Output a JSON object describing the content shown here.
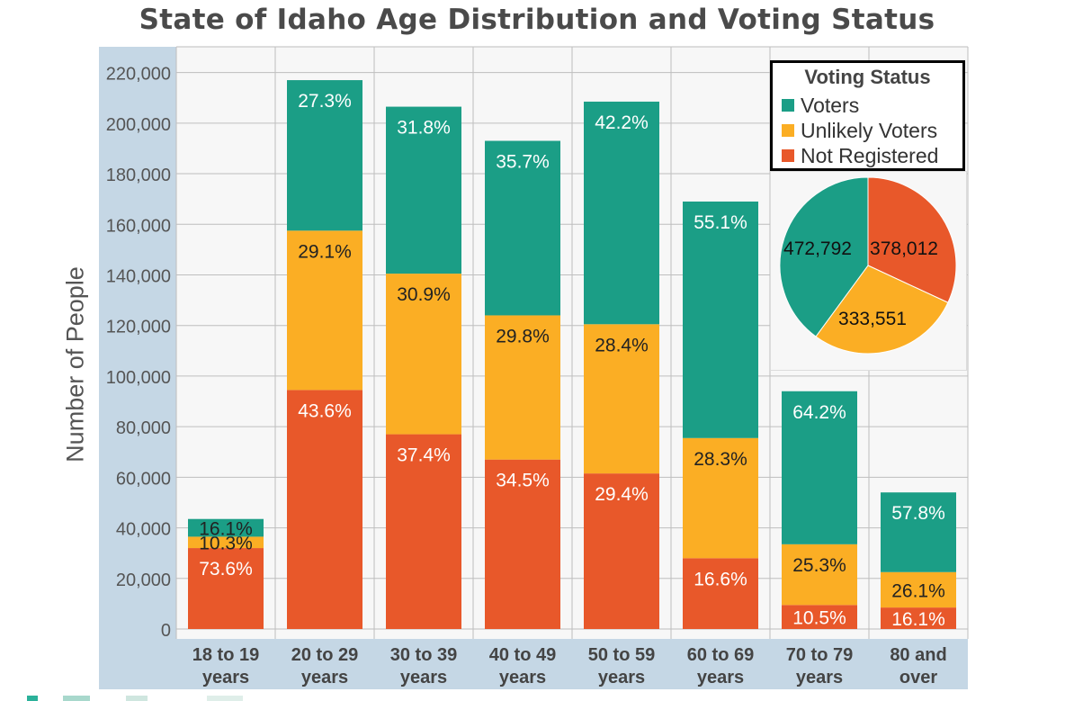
{
  "chart_data": [
    {
      "type": "bar",
      "stacked": true,
      "title": "State of Idaho Age Distribution and Voting Status",
      "ylabel": "Number of People",
      "xlabel": "",
      "ylim": [
        0,
        225000
      ],
      "yticks": [
        0,
        20000,
        40000,
        60000,
        80000,
        100000,
        120000,
        140000,
        160000,
        180000,
        200000,
        220000
      ],
      "ytick_labels": [
        "0",
        "20,000",
        "40,000",
        "60,000",
        "80,000",
        "100,000",
        "120,000",
        "140,000",
        "160,000",
        "180,000",
        "200,000",
        "220,000"
      ],
      "grid": true,
      "categories": [
        [
          "18 to 19",
          "years"
        ],
        [
          "20 to 29",
          "years"
        ],
        [
          "30 to 39",
          "years"
        ],
        [
          "40 to 49",
          "years"
        ],
        [
          "50 to 59",
          "years"
        ],
        [
          "60 to 69",
          "years"
        ],
        [
          "70 to 79",
          "years"
        ],
        [
          "80 and",
          "over"
        ]
      ],
      "series": [
        {
          "name": "Not Registered",
          "color": "#E8582A",
          "values": [
            32000,
            94500,
            77000,
            67000,
            61500,
            28000,
            9500,
            8500
          ],
          "labels": [
            "73.6%",
            "43.6%",
            "37.4%",
            "34.5%",
            "29.4%",
            "16.6%",
            "10.5%",
            "16.1%"
          ]
        },
        {
          "name": "Unlikely Voters",
          "color": "#FBAE24",
          "values": [
            4500,
            63000,
            63500,
            57000,
            59000,
            47500,
            24000,
            14000
          ],
          "labels": [
            "10.3%",
            "29.1%",
            "30.9%",
            "29.8%",
            "28.4%",
            "28.3%",
            "25.3%",
            "26.1%"
          ]
        },
        {
          "name": "Voters",
          "color": "#1B9E86",
          "values": [
            7000,
            59500,
            66000,
            69000,
            88000,
            93500,
            60500,
            31500
          ],
          "labels": [
            "16.1%",
            "27.3%",
            "31.8%",
            "35.7%",
            "42.2%",
            "55.1%",
            "64.2%",
            "57.8%"
          ]
        }
      ]
    },
    {
      "type": "pie",
      "slices": [
        {
          "name": "Not Registered",
          "value": 378012,
          "label": "378,012",
          "color": "#E8582A"
        },
        {
          "name": "Unlikely Voters",
          "value": 333551,
          "label": "333,551",
          "color": "#FBAE24"
        },
        {
          "name": "Voters",
          "value": 472792,
          "label": "472,792",
          "color": "#1B9E86"
        }
      ]
    }
  ],
  "legend": {
    "title": "Voting Status",
    "items": [
      {
        "label": "Voters",
        "color": "#1B9E86"
      },
      {
        "label": "Unlikely Voters",
        "color": "#FBAE24"
      },
      {
        "label": "Not Registered",
        "color": "#E8582A"
      }
    ]
  },
  "colors": {
    "axis_band": "#C5D7E5",
    "plot_background": "#F7F7F7",
    "grid": "#BEBEBE"
  }
}
